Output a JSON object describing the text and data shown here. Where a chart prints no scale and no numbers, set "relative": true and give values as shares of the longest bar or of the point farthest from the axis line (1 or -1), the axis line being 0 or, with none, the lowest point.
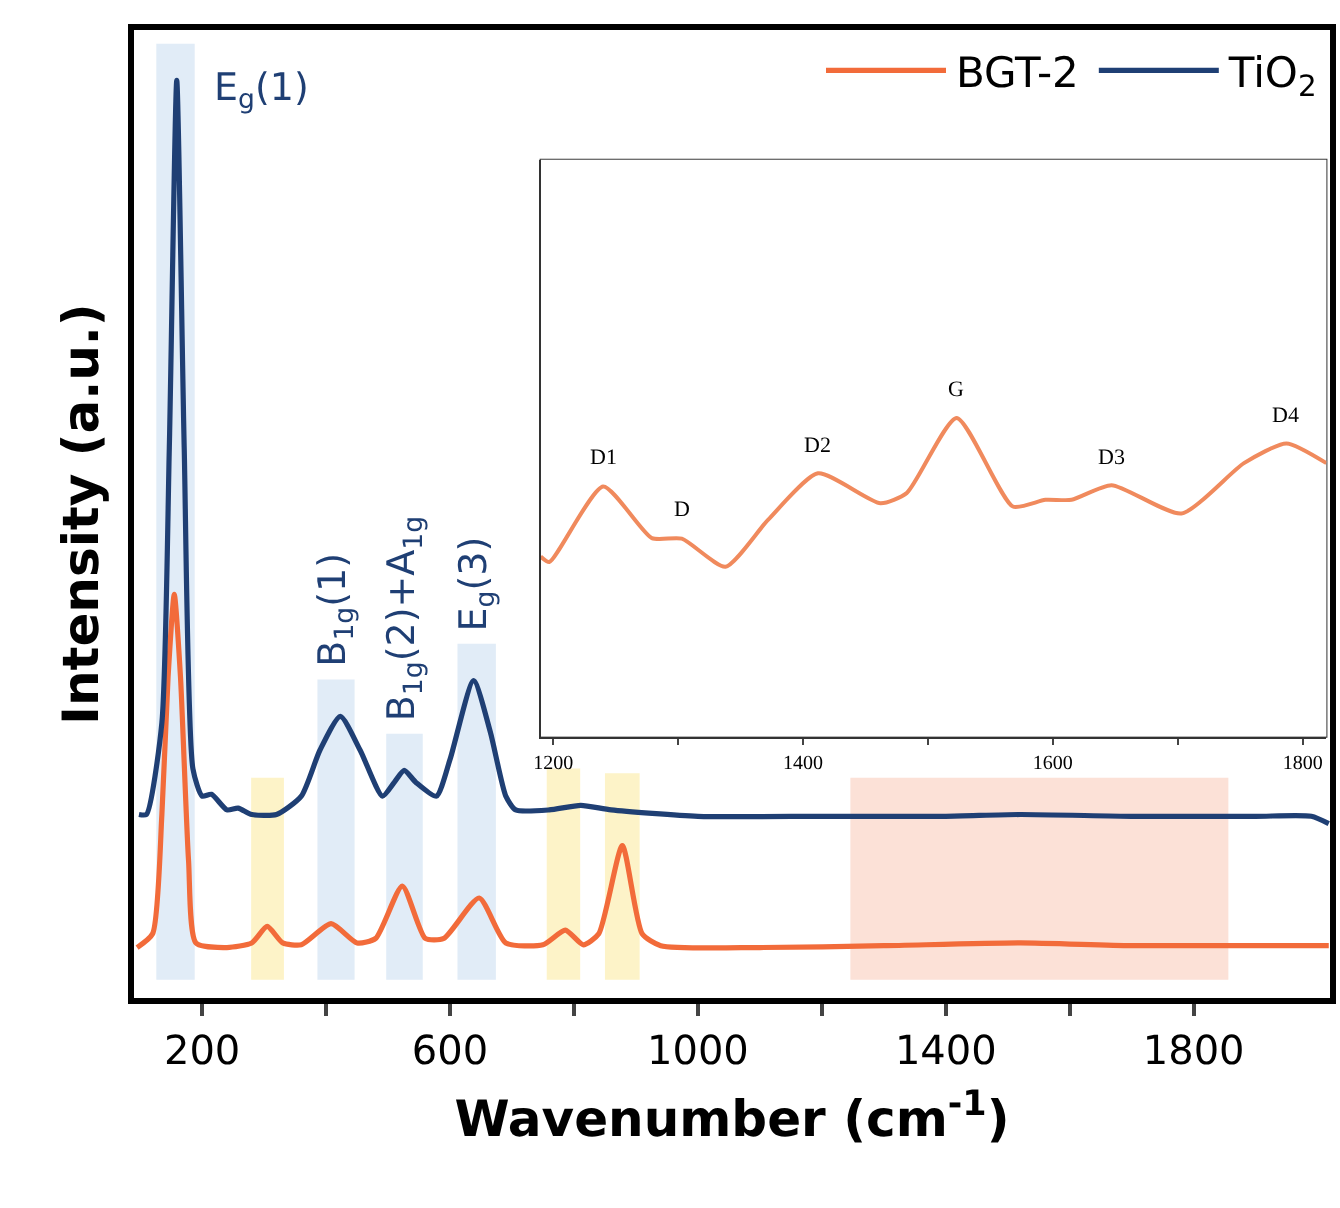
{
  "chart_data": [
    {
      "type": "line",
      "relative": true,
      "xlabel": "Wavenumber (cm$^{-1}$)",
      "ylabel": "Intensity (a.u.)",
      "xlim": [
        90,
        2020
      ],
      "xticks": [
        200,
        {
          "value": 400,
          "label": null
        },
        600,
        {
          "value": 800,
          "label": null
        },
        1000,
        {
          "value": 1200,
          "label": null
        },
        1400,
        {
          "value": 1600,
          "label": null
        },
        1800
      ],
      "legend": "top right",
      "grid": false,
      "series": [
        {
          "name": "BGT-2",
          "color": "#f26b3a",
          "x": [
            95,
            120,
            135,
            145,
            155,
            165,
            178,
            190,
            240,
            280,
            305,
            330,
            360,
            408,
            450,
            480,
            523,
            560,
            590,
            647,
            690,
            750,
            786,
            815,
            840,
            878,
            910,
            940,
            1100,
            1300,
            1520,
            1700,
            2018
          ],
          "values": [
            0.055,
            0.07,
            0.2,
            0.35,
            0.44,
            0.35,
            0.15,
            0.06,
            0.055,
            0.06,
            0.078,
            0.06,
            0.058,
            0.081,
            0.06,
            0.065,
            0.122,
            0.065,
            0.065,
            0.109,
            0.06,
            0.058,
            0.074,
            0.058,
            0.07,
            0.166,
            0.07,
            0.057,
            0.055,
            0.057,
            0.06,
            0.057,
            0.057
          ]
        },
        {
          "name": "TiO$_{2}$",
          "color": "#1f3f74",
          "x": [
            98,
            110,
            135,
            147,
            159,
            171,
            185,
            200,
            215,
            240,
            258,
            280,
            320,
            360,
            390,
            423,
            455,
            491,
            510,
            526,
            545,
            578,
            600,
            638,
            665,
            690,
            706,
            760,
            811,
            860,
            1000,
            1200,
            1400,
            1520,
            1700,
            1900,
            1990,
            2018
          ],
          "values": [
            0.2,
            0.2,
            0.3,
            0.6,
            1.0,
            0.6,
            0.25,
            0.22,
            0.222,
            0.205,
            0.207,
            0.2,
            0.2,
            0.22,
            0.27,
            0.307,
            0.27,
            0.22,
            0.235,
            0.248,
            0.235,
            0.22,
            0.26,
            0.346,
            0.29,
            0.22,
            0.205,
            0.205,
            0.21,
            0.205,
            0.198,
            0.198,
            0.198,
            0.2,
            0.198,
            0.198,
            0.198,
            0.19
          ]
        }
      ],
      "bands": [
        {
          "axis": "x",
          "from": 126,
          "to": 188,
          "label": "E$_{g}$(1)",
          "color": "#c9dcf0"
        },
        {
          "axis": "x",
          "from": 386,
          "to": 446,
          "label": "B$_{1g}$(1)",
          "color": "#c9dcf0"
        },
        {
          "axis": "x",
          "from": 497,
          "to": 556,
          "label": "B$_{1g}$(2)+A$_{1g}$",
          "color": "#c9dcf0"
        },
        {
          "axis": "x",
          "from": 612,
          "to": 674,
          "label": "E$_{g}$(3)",
          "color": "#c9dcf0"
        },
        {
          "axis": "x",
          "from": 279,
          "to": 332,
          "color": "#fbe99a"
        },
        {
          "axis": "x",
          "from": 756,
          "to": 810,
          "color": "#fbe99a"
        },
        {
          "axis": "x",
          "from": 850,
          "to": 906,
          "color": "#fbe99a"
        },
        {
          "axis": "x",
          "from": 1246,
          "to": 1856,
          "color": "#f9c9b6"
        }
      ]
    },
    {
      "type": "line",
      "relative": true,
      "tick_labels": "x",
      "xlim": [
        1190,
        1819
      ],
      "xticks": [
        1200,
        {
          "value": 1300,
          "label": null
        },
        1400,
        {
          "value": 1500,
          "label": null
        },
        1600,
        {
          "value": 1700,
          "label": null
        },
        1800
      ],
      "series": [
        {
          "color": "#f08a5d",
          "x": [
            1190,
            1197,
            1240,
            1279,
            1303,
            1338,
            1372,
            1412,
            1462,
            1483,
            1523,
            1568,
            1594,
            1615,
            1647,
            1703,
            1753,
            1787,
            1819
          ],
          "values": [
            0.565,
            0.548,
            0.785,
            0.623,
            0.621,
            0.533,
            0.68,
            0.826,
            0.732,
            0.764,
            1.0,
            0.722,
            0.743,
            0.743,
            0.789,
            0.7,
            0.858,
            0.92,
            0.858
          ]
        }
      ],
      "annotations": [
        {
          "text": "D1",
          "x": 1240,
          "y": 0.785
        },
        {
          "text": "D",
          "x": 1303,
          "y": 0.621
        },
        {
          "text": "D2",
          "x": 1412,
          "y": 0.826
        },
        {
          "text": "G",
          "x": 1523,
          "y": 1.0
        },
        {
          "text": "D3",
          "x": 1647,
          "y": 0.789
        },
        {
          "text": "D4",
          "x": 1787,
          "y": 0.92
        }
      ]
    }
  ]
}
